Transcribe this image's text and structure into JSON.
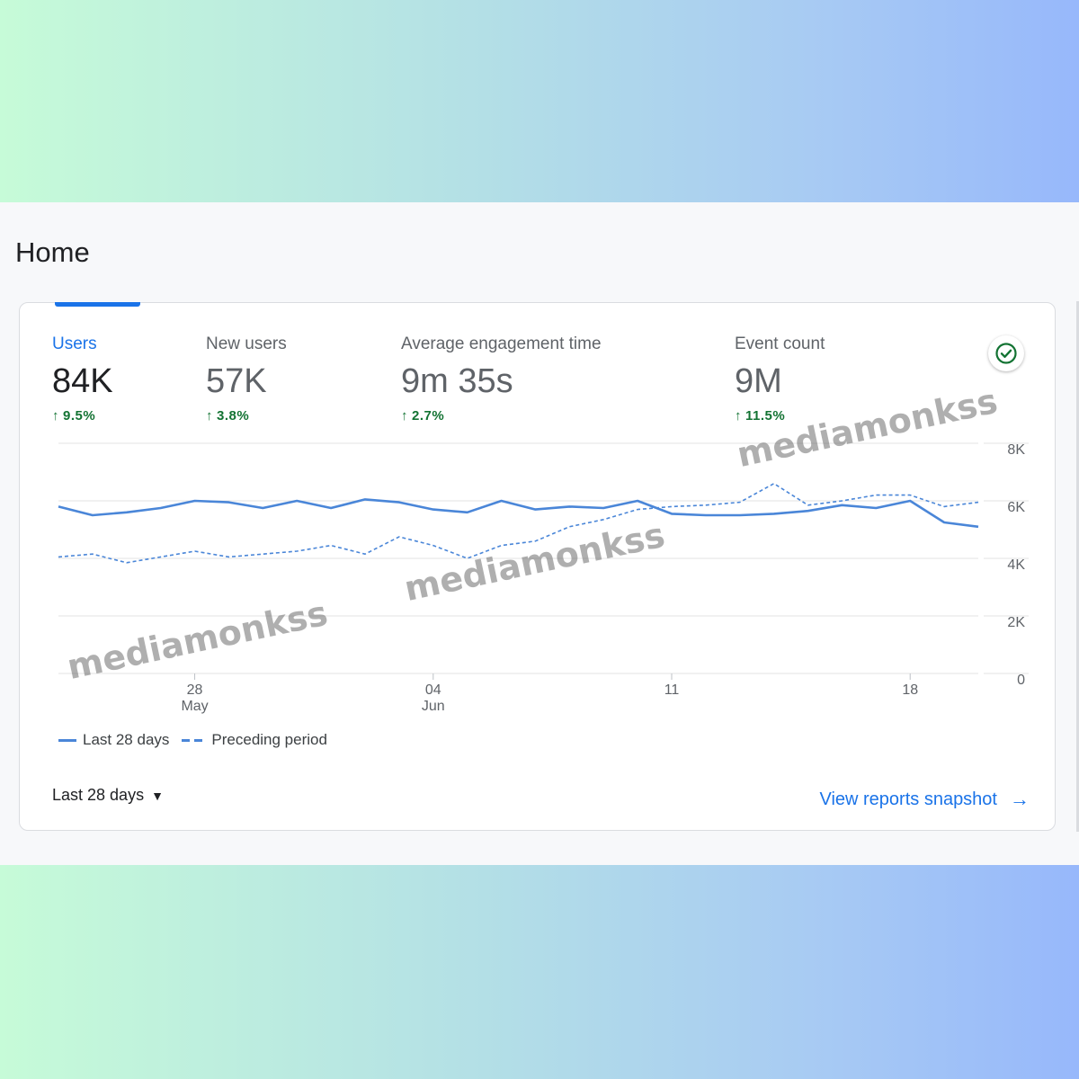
{
  "page": {
    "title": "Home"
  },
  "metrics": [
    {
      "label": "Users",
      "value": "84K",
      "delta": "9.5%",
      "active": true
    },
    {
      "label": "New users",
      "value": "57K",
      "delta": "3.8%",
      "active": false
    },
    {
      "label": "Average engagement time",
      "value": "9m 35s",
      "delta": "2.7%",
      "active": false
    },
    {
      "label": "Event count",
      "value": "9M",
      "delta": "11.5%",
      "active": false
    }
  ],
  "icons": {
    "status": "check-circle-icon",
    "dropdown": "caret-down-icon",
    "link": "arrow-right-icon"
  },
  "colors": {
    "accent": "#1a73e8",
    "series": "#4a86d8",
    "positive": "#137333"
  },
  "chart_data": {
    "type": "line",
    "x_ticks": [
      {
        "day": "28",
        "month": "May"
      },
      {
        "day": "04",
        "month": "Jun"
      },
      {
        "day": "11",
        "month": ""
      },
      {
        "day": "18",
        "month": ""
      }
    ],
    "y_ticks": [
      "8K",
      "6K",
      "4K",
      "2K",
      "0"
    ],
    "ylim": [
      0,
      8000
    ],
    "grid": true,
    "series": [
      {
        "name": "Last 28 days",
        "style": "solid",
        "values": [
          5800,
          5500,
          5600,
          5750,
          6000,
          5950,
          5750,
          6000,
          5750,
          6050,
          5950,
          5700,
          5600,
          6000,
          5700,
          5800,
          5750,
          6000,
          5550,
          5500,
          5500,
          5550,
          5650,
          5850,
          5750,
          6000,
          5250,
          5100
        ]
      },
      {
        "name": "Preceding period",
        "style": "dashed",
        "values": [
          4050,
          4150,
          3850,
          4050,
          4250,
          4050,
          4150,
          4250,
          4450,
          4150,
          4750,
          4450,
          4000,
          4450,
          4600,
          5100,
          5350,
          5700,
          5800,
          5850,
          5950,
          6600,
          5850,
          6000,
          6200,
          6200,
          5800,
          5950
        ]
      }
    ],
    "legend_position": "bottom-left"
  },
  "footer": {
    "date_range": "Last 28 days",
    "link": "View reports snapshot"
  },
  "watermark": "mediamonkss"
}
